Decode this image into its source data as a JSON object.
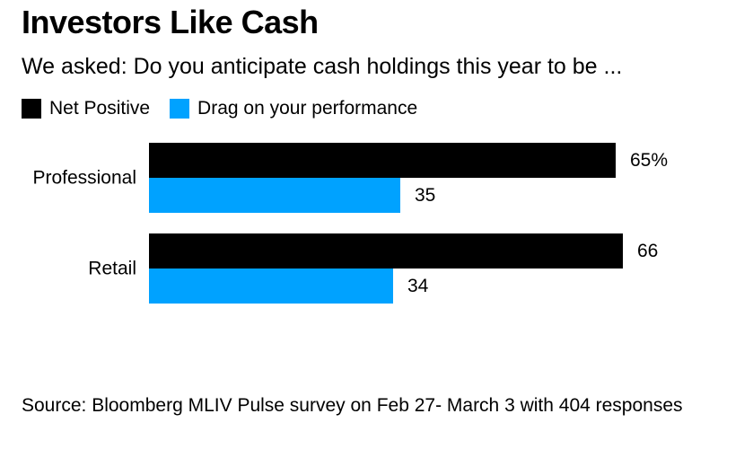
{
  "title": "Investors Like Cash",
  "subtitle": "We asked: Do you anticipate cash holdings this year to be ...",
  "source": "Source: Bloomberg MLIV Pulse survey on Feb 27- March 3 with 404 responses",
  "colors": {
    "net_positive": "#000000",
    "drag": "#00a2ff",
    "background": "#ffffff"
  },
  "chart_data": {
    "type": "bar",
    "orientation": "horizontal",
    "categories": [
      "Professional",
      "Retail"
    ],
    "series": [
      {
        "name": "Net Positive",
        "values": [
          65,
          66
        ],
        "labels": [
          "65%",
          "66"
        ],
        "color": "#000000"
      },
      {
        "name": "Drag on your performance",
        "values": [
          35,
          34
        ],
        "labels": [
          "35",
          "34"
        ],
        "color": "#00a2ff"
      }
    ],
    "unit": "%",
    "xlim": [
      0,
      100
    ],
    "grid": false,
    "legend_position": "top-left"
  }
}
